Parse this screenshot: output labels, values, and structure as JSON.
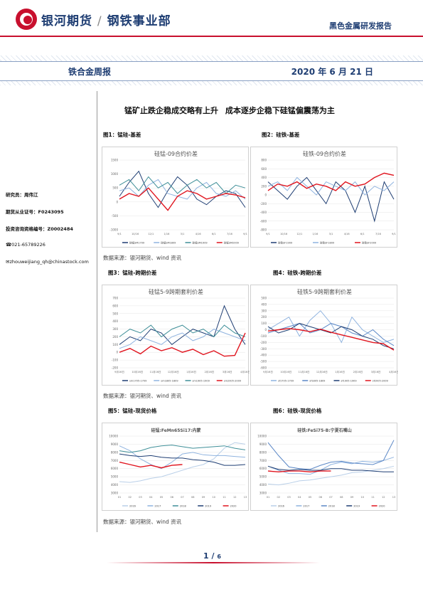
{
  "header": {
    "brand": "银河期货",
    "slash": "/",
    "department": "钢铁事业部",
    "report_type": "黑色金属研发报告"
  },
  "band": {
    "title": "铁合金周报",
    "date": "2020 年 6 月 21 日"
  },
  "main_title": "锰矿止跌企稳成交略有上升    成本逐步企稳下硅锰偏震荡为主",
  "sidebar": {
    "analyst": "研究员：周伟江",
    "license": "期货从业证号：F0243095",
    "consult": "投资咨询资格编号：Z0002484",
    "phone": "☎021-65789226",
    "email": "✉zhouweijiang_qh@chinastock.com"
  },
  "figures": {
    "fig1": "图1：锰硅-基差",
    "fig2": "图2：硅铁-基差",
    "fig3": "图3：锰硅-跨期价差",
    "fig4": "图4：硅铁-跨期价差",
    "fig5": "图5：锰硅-现货价格",
    "fig6": "图6：硅铁-现货价格",
    "source": "数据来源：银河期货、wind 资讯"
  },
  "page": {
    "num": "1",
    "sep": "/",
    "total": "6"
  },
  "colors": {
    "red": "#e0141e",
    "navy": "#1f3e73",
    "teal": "#3f8f98",
    "light_blue": "#8fb3df",
    "mid_blue": "#5a87c6"
  },
  "chart_data": [
    {
      "id": "fig1",
      "type": "line",
      "title": "硅锰-09合约价差",
      "ylim": [
        -1000,
        1500
      ],
      "yticks": [
        "1500",
        "1000",
        "500",
        "0",
        "-500",
        "-1000"
      ],
      "xticks": [
        "9/1",
        "10/16",
        "12/1",
        "1/16",
        "3/1",
        "4/16",
        "6/1",
        "7/16",
        "9/1"
      ],
      "series": [
        {
          "name": "硅锰SM1709",
          "color": "#1f3e73",
          "values": [
            200,
            700,
            1100,
            300,
            -200,
            400,
            900,
            600,
            100,
            -100,
            200,
            400,
            300,
            -200
          ]
        },
        {
          "name": "硅锰SM1809",
          "color": "#8fb3df",
          "values": [
            400,
            500,
            200,
            600,
            800,
            300,
            200,
            100,
            500,
            700,
            300,
            200,
            400,
            100
          ]
        },
        {
          "name": "硅锰SM1909",
          "color": "#3f8f98",
          "values": [
            600,
            800,
            400,
            900,
            500,
            700,
            300,
            600,
            800,
            500,
            700,
            300,
            600,
            500
          ]
        },
        {
          "name": "硅锰SM2009",
          "color": "#e0141e",
          "values": [
            100,
            300,
            200,
            500,
            100,
            -300,
            200,
            400,
            300,
            100,
            200,
            300,
            250,
            150
          ]
        }
      ]
    },
    {
      "id": "fig2",
      "type": "line",
      "title": "硅铁-09合约价差",
      "ylim": [
        -800,
        800
      ],
      "yticks": [
        "800",
        "600",
        "400",
        "200",
        "0",
        "-200",
        "-400",
        "-600",
        "-800"
      ],
      "xticks": [
        "9/1",
        "10/16",
        "12/1",
        "1/16",
        "3/1",
        "4/16",
        "6/1",
        "7/16",
        "9/1"
      ],
      "series": [
        {
          "name": "硅铁SF1909",
          "color": "#1f3e73",
          "values": [
            300,
            100,
            -100,
            200,
            400,
            100,
            -200,
            300,
            100,
            -400,
            200,
            -600,
            300,
            -100
          ]
        },
        {
          "name": "硅铁SF1809",
          "color": "#8fb3df",
          "values": [
            200,
            300,
            100,
            400,
            200,
            0,
            300,
            200,
            100,
            300,
            0,
            200,
            100,
            300
          ]
        },
        {
          "name": "硅铁SF2009",
          "color": "#e0141e",
          "values": [
            100,
            250,
            200,
            300,
            150,
            250,
            200,
            100,
            300,
            200,
            250,
            400,
            500,
            450
          ]
        }
      ]
    },
    {
      "id": "fig3",
      "type": "line",
      "title": "硅锰5-9跨期套利价差",
      "ylim": [
        -200,
        700
      ],
      "yticks": [
        "700",
        "600",
        "500",
        "400",
        "300",
        "200",
        "100",
        "0",
        "-100",
        "-200"
      ],
      "xticks": [
        "9月16日",
        "10月16日",
        "11月16日",
        "12月16日",
        "1月16日",
        "2月16日",
        "3月16日",
        "4月16日"
      ],
      "series": [
        {
          "name": "sm1705-1709",
          "color": "#1f3e73",
          "values": [
            100,
            200,
            150,
            300,
            250,
            100,
            200,
            300,
            250,
            200,
            600,
            300,
            100
          ]
        },
        {
          "name": "sm1805-1809",
          "color": "#8fb3df",
          "values": [
            50,
            100,
            200,
            150,
            100,
            200,
            250,
            150,
            200,
            300,
            250,
            200,
            150
          ]
        },
        {
          "name": "sm1905-1909",
          "color": "#3f8f98",
          "values": [
            200,
            300,
            250,
            350,
            200,
            300,
            350,
            250,
            300,
            200,
            350,
            250,
            200
          ]
        },
        {
          "name": "sm2005-2009",
          "color": "#e0141e",
          "values": [
            0,
            50,
            -20,
            80,
            20,
            60,
            0,
            40,
            -30,
            20,
            -50,
            -40,
            250
          ]
        }
      ]
    },
    {
      "id": "fig4",
      "type": "line",
      "title": "硅铁5-9跨期套利价差",
      "ylim": [
        -600,
        500
      ],
      "yticks": [
        "500",
        "400",
        "300",
        "200",
        "100",
        "0",
        "-100",
        "-200",
        "-300",
        "-400",
        "-500",
        "-600"
      ],
      "xticks": [
        "9月16日",
        "10月16日",
        "11月16日",
        "12月16日",
        "1月16日",
        "2月16日",
        "3月16日",
        "4月16日"
      ],
      "series": [
        {
          "name": "sf1705-1709",
          "color": "#8fb3df",
          "values": [
            0,
            100,
            200,
            -100,
            150,
            300,
            100,
            -200,
            200,
            0,
            -100,
            -200,
            -150
          ]
        },
        {
          "name": "sf1805-1809",
          "color": "#5a87c6",
          "values": [
            -50,
            0,
            50,
            100,
            -50,
            0,
            100,
            50,
            -50,
            -100,
            0,
            -150,
            -250
          ]
        },
        {
          "name": "sf1905-1909",
          "color": "#1f3e73",
          "values": [
            50,
            -50,
            0,
            100,
            50,
            0,
            -50,
            50,
            0,
            -100,
            -150,
            -250,
            -300
          ]
        },
        {
          "name": "sf2005-2009",
          "color": "#e0141e",
          "values": [
            -20,
            0,
            20,
            0,
            -30,
            10,
            -40,
            -80,
            -120,
            -160,
            -200,
            -220,
            -320
          ]
        }
      ]
    },
    {
      "id": "fig5",
      "type": "line",
      "title": "硅锰:FeMn65Si17:内蒙",
      "ylim": [
        3000,
        10000
      ],
      "yticks": [
        "10000",
        "9000",
        "8000",
        "7000",
        "6000",
        "5000",
        "4000",
        "3000"
      ],
      "xticks": [
        "01",
        "02",
        "03",
        "04",
        "05",
        "06",
        "07",
        "08",
        "09",
        "10",
        "11",
        "12",
        "13"
      ],
      "series": [
        {
          "name": "2016",
          "color": "#b9cfe8",
          "values": [
            4400,
            4300,
            4500,
            4800,
            5000,
            5400,
            5800,
            6200,
            6500,
            7200,
            8500,
            9200,
            9000
          ]
        },
        {
          "name": "2017",
          "color": "#8fb3df",
          "values": [
            8800,
            8200,
            7200,
            6500,
            6000,
            6800,
            7800,
            8000,
            7700,
            7600,
            7600,
            7500,
            7400
          ]
        },
        {
          "name": "2018",
          "color": "#3f8f98",
          "values": [
            8200,
            8000,
            8200,
            8600,
            8800,
            8900,
            8700,
            8500,
            8600,
            8700,
            8800,
            8500,
            8300
          ]
        },
        {
          "name": "2019",
          "color": "#1f3e73",
          "values": [
            7800,
            7600,
            7500,
            7600,
            7400,
            7300,
            7300,
            7100,
            7000,
            6800,
            6400,
            6400,
            6500
          ]
        },
        {
          "name": "2020",
          "color": "#e0141e",
          "values": [
            6800,
            6500,
            6200,
            6400,
            6100,
            6400,
            6500
          ]
        }
      ]
    },
    {
      "id": "fig6",
      "type": "line",
      "title": "硅铁:FeSi75-B:宁夏石嘴山",
      "ylim": [
        3000,
        10000
      ],
      "yticks": [
        "10000",
        "9000",
        "8000",
        "7000",
        "6000",
        "5000",
        "4000",
        "3000"
      ],
      "xticks": [
        "01",
        "02",
        "03",
        "04",
        "05",
        "06",
        "07",
        "08",
        "09",
        "10",
        "11",
        "12",
        "13"
      ],
      "series": [
        {
          "name": "2016",
          "color": "#b9cfe8",
          "values": [
            4100,
            4000,
            4200,
            4500,
            4600,
            4800,
            5000,
            5200,
            5500,
            5600,
            5800,
            6000,
            6300
          ]
        },
        {
          "name": "2017",
          "color": "#8fb3df",
          "values": [
            6300,
            5800,
            5400,
            5400,
            5300,
            5800,
            6500,
            6800,
            6600,
            6900,
            6800,
            7000,
            7400
          ]
        },
        {
          "name": "2018",
          "color": "#5a87c6",
          "values": [
            9200,
            7600,
            6200,
            6000,
            5900,
            6400,
            6800,
            6900,
            6700,
            6600,
            6500,
            7000,
            9500
          ]
        },
        {
          "name": "2019",
          "color": "#1f3e73",
          "values": [
            6300,
            5900,
            5800,
            5900,
            5800,
            5800,
            6000,
            6000,
            5800,
            5800,
            5700,
            5600,
            5600
          ]
        },
        {
          "name": "2020",
          "color": "#e0141e",
          "values": [
            5700,
            5600,
            5700,
            5700,
            5600,
            5700,
            5700
          ]
        }
      ]
    }
  ]
}
